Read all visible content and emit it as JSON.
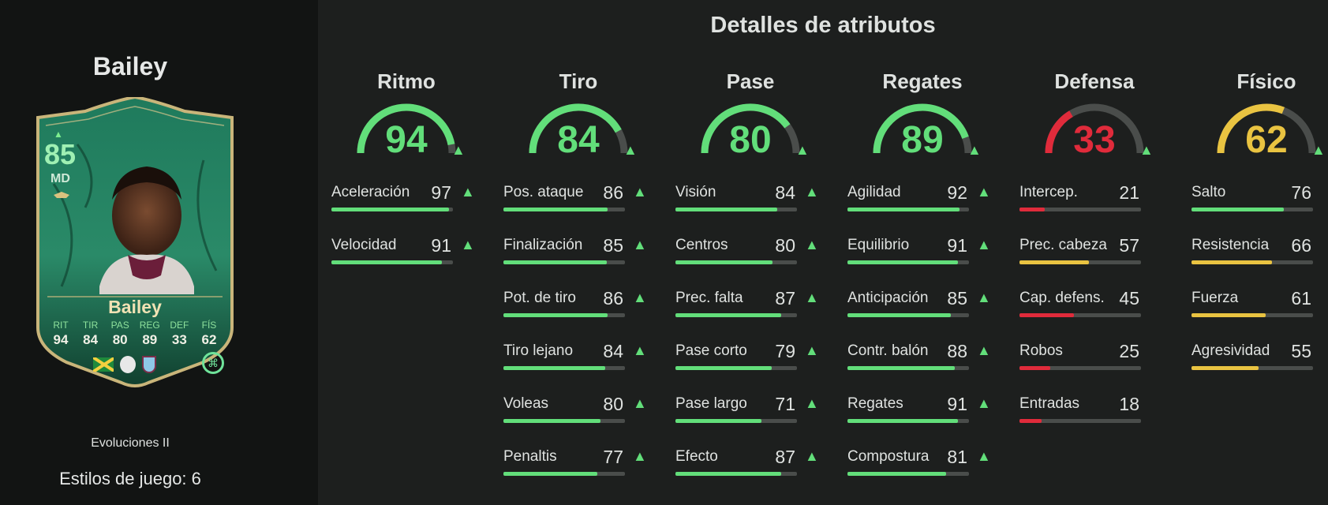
{
  "player": {
    "name": "Bailey",
    "card": {
      "rating": "85",
      "position": "MD",
      "name": "Bailey",
      "stats": [
        {
          "label": "RIT",
          "value": "94"
        },
        {
          "label": "TIR",
          "value": "84"
        },
        {
          "label": "PAS",
          "value": "80"
        },
        {
          "label": "REG",
          "value": "89"
        },
        {
          "label": "DEF",
          "value": "33"
        },
        {
          "label": "FÍS",
          "value": "62"
        }
      ]
    },
    "program": "Evoluciones II",
    "playstyles": "Estilos de juego: 6"
  },
  "page_title": "Detalles de atributos",
  "colors": {
    "green": "#62de7a",
    "red": "#e02b3b",
    "yellow": "#e9c341",
    "track": "#4a4d4b"
  },
  "categories": [
    {
      "name": "Ritmo",
      "value": 94,
      "color": "#62de7a",
      "stats": [
        {
          "label": "Aceleración",
          "value": 97
        },
        {
          "label": "Velocidad",
          "value": 91
        }
      ]
    },
    {
      "name": "Tiro",
      "value": 84,
      "color": "#62de7a",
      "stats": [
        {
          "label": "Pos. ataque",
          "value": 86
        },
        {
          "label": "Finalización",
          "value": 85
        },
        {
          "label": "Pot. de tiro",
          "value": 86
        },
        {
          "label": "Tiro lejano",
          "value": 84
        },
        {
          "label": "Voleas",
          "value": 80
        },
        {
          "label": "Penaltis",
          "value": 77
        }
      ]
    },
    {
      "name": "Pase",
      "value": 80,
      "color": "#62de7a",
      "stats": [
        {
          "label": "Visión",
          "value": 84
        },
        {
          "label": "Centros",
          "value": 80
        },
        {
          "label": "Prec. falta",
          "value": 87
        },
        {
          "label": "Pase corto",
          "value": 79
        },
        {
          "label": "Pase largo",
          "value": 71
        },
        {
          "label": "Efecto",
          "value": 87
        }
      ]
    },
    {
      "name": "Regates",
      "value": 89,
      "color": "#62de7a",
      "stats": [
        {
          "label": "Agilidad",
          "value": 92
        },
        {
          "label": "Equilibrio",
          "value": 91
        },
        {
          "label": "Anticipación",
          "value": 85
        },
        {
          "label": "Contr. balón",
          "value": 88
        },
        {
          "label": "Regates",
          "value": 91
        },
        {
          "label": "Compostura",
          "value": 81
        }
      ]
    },
    {
      "name": "Defensa",
      "value": 33,
      "color": "#e02b3b",
      "stats": [
        {
          "label": "Intercep.",
          "value": 21
        },
        {
          "label": "Prec. cabeza",
          "value": 57
        },
        {
          "label": "Cap. defens.",
          "value": 45
        },
        {
          "label": "Robos",
          "value": 25
        },
        {
          "label": "Entradas",
          "value": 18
        }
      ]
    },
    {
      "name": "Físico",
      "value": 62,
      "color": "#e9c341",
      "stats": [
        {
          "label": "Salto",
          "value": 76
        },
        {
          "label": "Resistencia",
          "value": 66
        },
        {
          "label": "Fuerza",
          "value": 61
        },
        {
          "label": "Agresividad",
          "value": 55
        }
      ]
    }
  ]
}
